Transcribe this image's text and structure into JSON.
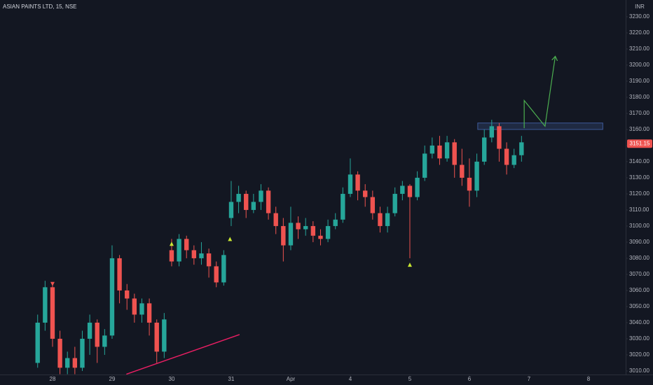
{
  "chart_data": {
    "type": "candlestick",
    "title": "ASIAN PAINTS LTD, 15, NSE",
    "currency": "INR",
    "last_price": 3151.15,
    "up_color": "#26a69a",
    "down_color": "#ef5350",
    "grid": false,
    "xlim": [
      -0.882,
      9.624
    ],
    "xticks": [
      {
        "value": 0,
        "label": "28"
      },
      {
        "value": 1,
        "label": "29"
      },
      {
        "value": 2,
        "label": "30"
      },
      {
        "value": 3,
        "label": "31"
      },
      {
        "value": 4,
        "label": "Apr"
      },
      {
        "value": 5,
        "label": "4"
      },
      {
        "value": 6,
        "label": "5"
      },
      {
        "value": 7,
        "label": "6"
      },
      {
        "value": 8,
        "label": "7"
      },
      {
        "value": 9,
        "label": "8"
      }
    ],
    "ylim": [
      3007.8,
      3240.4
    ],
    "yticks": [
      {
        "value": 3010,
        "label": "3010.00"
      },
      {
        "value": 3020,
        "label": "3020.00"
      },
      {
        "value": 3030,
        "label": "3030.00"
      },
      {
        "value": 3040,
        "label": "3040.00"
      },
      {
        "value": 3050,
        "label": "3050.00"
      },
      {
        "value": 3060,
        "label": "3060.00"
      },
      {
        "value": 3070,
        "label": "3070.00"
      },
      {
        "value": 3080,
        "label": "3080.00"
      },
      {
        "value": 3090,
        "label": "3090.00"
      },
      {
        "value": 3100,
        "label": "3100.00"
      },
      {
        "value": 3110,
        "label": "3110.00"
      },
      {
        "value": 3120,
        "label": "3120.00"
      },
      {
        "value": 3130,
        "label": "3130.00"
      },
      {
        "value": 3140,
        "label": "3140.00"
      },
      {
        "value": 3150,
        "label": "3150.00"
      },
      {
        "value": 3160,
        "label": "3160.00"
      },
      {
        "value": 3170,
        "label": "3170.00"
      },
      {
        "value": 3180,
        "label": "3180.00"
      },
      {
        "value": 3190,
        "label": "3190.00"
      },
      {
        "value": 3200,
        "label": "3200.00"
      },
      {
        "value": 3210,
        "label": "3210.00"
      },
      {
        "value": 3220,
        "label": "3220.00"
      },
      {
        "value": 3230,
        "label": "3230.00"
      }
    ],
    "x": [
      -0.25,
      -0.125,
      0,
      0.125,
      0.25,
      0.375,
      0.5,
      0.625,
      0.75,
      0.875,
      1,
      1.125,
      1.25,
      1.375,
      1.5,
      1.625,
      1.75,
      1.875,
      2,
      2.125,
      2.25,
      2.375,
      2.5,
      2.625,
      2.75,
      2.875,
      3,
      3.125,
      3.25,
      3.375,
      3.5,
      3.625,
      3.75,
      3.875,
      4,
      4.125,
      4.25,
      4.375,
      4.5,
      4.625,
      4.75,
      4.875,
      5,
      5.125,
      5.25,
      5.375,
      5.5,
      5.625,
      5.75,
      5.875,
      6,
      6.125,
      6.25,
      6.375,
      6.5,
      6.625,
      6.75,
      6.875,
      7,
      7.125,
      7.25,
      7.375,
      7.5,
      7.625,
      7.75,
      7.875
    ],
    "open": [
      3015,
      3040,
      3062,
      3030,
      3012,
      3018,
      3012,
      3030,
      3040,
      3025,
      3032,
      3080,
      3060,
      3055,
      3045,
      3052,
      3040,
      3022,
      3085,
      3078,
      3092,
      3085,
      3080,
      3083,
      3075,
      3065,
      3105,
      3115,
      3120,
      3110,
      3115,
      3122,
      3108,
      3100,
      3088,
      3102,
      3098,
      3100,
      3094,
      3092,
      3100,
      3104,
      3120,
      3132,
      3122,
      3118,
      3108,
      3100,
      3108,
      3120,
      3125,
      3118,
      3130,
      3145,
      3150,
      3142,
      3152,
      3138,
      3130,
      3122,
      3140,
      3155,
      3162,
      3148,
      3138,
      3144
    ],
    "high": [
      3045,
      3066,
      3065,
      3035,
      3022,
      3025,
      3035,
      3045,
      3042,
      3036,
      3088,
      3082,
      3064,
      3058,
      3055,
      3055,
      3042,
      3046,
      3092,
      3095,
      3094,
      3088,
      3090,
      3086,
      3078,
      3085,
      3128,
      3125,
      3122,
      3120,
      3126,
      3124,
      3112,
      3105,
      3112,
      3106,
      3105,
      3103,
      3098,
      3104,
      3108,
      3124,
      3142,
      3134,
      3126,
      3122,
      3112,
      3112,
      3124,
      3128,
      3126,
      3134,
      3150,
      3155,
      3156,
      3156,
      3154,
      3148,
      3142,
      3145,
      3160,
      3166,
      3164,
      3152,
      3148,
      3156
    ],
    "low": [
      3012,
      3035,
      3025,
      3008,
      3008,
      3008,
      3010,
      3020,
      3015,
      3020,
      3030,
      3052,
      3048,
      3040,
      3040,
      3032,
      3015,
      3018,
      3075,
      3075,
      3080,
      3076,
      3076,
      3068,
      3062,
      3063,
      3100,
      3108,
      3105,
      3108,
      3110,
      3104,
      3095,
      3078,
      3085,
      3092,
      3094,
      3090,
      3088,
      3090,
      3098,
      3102,
      3118,
      3116,
      3112,
      3104,
      3096,
      3096,
      3106,
      3116,
      3080,
      3116,
      3128,
      3142,
      3138,
      3140,
      3130,
      3125,
      3112,
      3118,
      3138,
      3152,
      3140,
      3132,
      3136,
      3140
    ],
    "close": [
      3040,
      3062,
      3030,
      3012,
      3018,
      3012,
      3030,
      3040,
      3025,
      3032,
      3080,
      3060,
      3055,
      3045,
      3052,
      3040,
      3022,
      3042,
      3078,
      3092,
      3085,
      3080,
      3083,
      3075,
      3065,
      3082,
      3115,
      3120,
      3110,
      3115,
      3122,
      3108,
      3100,
      3088,
      3102,
      3098,
      3100,
      3094,
      3092,
      3100,
      3104,
      3120,
      3132,
      3122,
      3118,
      3108,
      3100,
      3108,
      3120,
      3125,
      3118,
      3130,
      3145,
      3150,
      3142,
      3152,
      3138,
      3130,
      3122,
      3140,
      3155,
      3162,
      3148,
      3138,
      3144,
      3152
    ],
    "zone": {
      "x": [
        7.14,
        9.24
      ],
      "y": [
        3160,
        3164
      ],
      "color": "#2a3a5c"
    },
    "trendline": {
      "x": [
        1.24,
        3.14
      ],
      "y": [
        3008,
        3032.6
      ],
      "color": "#e91e63"
    },
    "projection": {
      "x": [
        7.92,
        7.92,
        8.27,
        8.44
      ],
      "y": [
        3160.8,
        3178,
        3162,
        3205
      ],
      "color": "#4caf50"
    },
    "markers": [
      {
        "x": 0,
        "y": 3064,
        "shape": "down",
        "color": "#ef5350"
      },
      {
        "x": 2.0,
        "y": 3089,
        "shape": "up",
        "color": "#c8e632"
      },
      {
        "x": 2.98,
        "y": 3092,
        "shape": "up",
        "color": "#c8e632"
      },
      {
        "x": 6.0,
        "y": 3076,
        "shape": "up",
        "color": "#c8e632"
      }
    ]
  }
}
